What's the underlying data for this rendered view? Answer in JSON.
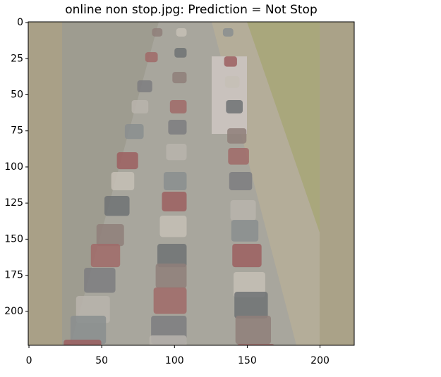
{
  "chart_data": {
    "type": "image",
    "title": "online non stop.jpg: Prediction = Not Stop",
    "xlim": [
      -0.5,
      223.5
    ],
    "ylim": [
      223.5,
      -0.5
    ],
    "xticks": [
      0,
      50,
      100,
      150,
      200
    ],
    "yticks": [
      0,
      25,
      50,
      75,
      100,
      125,
      150,
      175,
      200
    ]
  }
}
